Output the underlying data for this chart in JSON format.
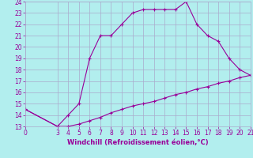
{
  "xlabel": "Windchill (Refroidissement éolien,°C)",
  "bg_color": "#b2eeee",
  "grid_color": "#aaaacc",
  "line_color": "#990099",
  "line1_x": [
    0,
    3,
    4,
    5,
    6,
    7,
    8,
    9,
    10,
    11,
    12,
    13,
    14,
    15,
    16,
    17,
    18,
    19,
    20,
    21
  ],
  "line1_y": [
    14.5,
    13.0,
    14.0,
    15.0,
    19.0,
    21.0,
    21.0,
    22.0,
    23.0,
    23.3,
    23.3,
    23.3,
    23.3,
    24.0,
    22.0,
    21.0,
    20.5,
    19.0,
    18.0,
    17.5
  ],
  "line2_x": [
    0,
    3,
    4,
    5,
    6,
    7,
    8,
    9,
    10,
    11,
    12,
    13,
    14,
    15,
    16,
    17,
    18,
    19,
    20,
    21
  ],
  "line2_y": [
    14.5,
    13.0,
    13.0,
    13.2,
    13.5,
    13.8,
    14.2,
    14.5,
    14.8,
    15.0,
    15.2,
    15.5,
    15.8,
    16.0,
    16.3,
    16.5,
    16.8,
    17.0,
    17.3,
    17.5
  ],
  "xlim": [
    0,
    21
  ],
  "ylim": [
    13,
    24
  ],
  "xticks": [
    0,
    3,
    4,
    5,
    6,
    7,
    8,
    9,
    10,
    11,
    12,
    13,
    14,
    15,
    16,
    17,
    18,
    19,
    20,
    21
  ],
  "yticks": [
    13,
    14,
    15,
    16,
    17,
    18,
    19,
    20,
    21,
    22,
    23,
    24
  ],
  "tick_fontsize": 5.5,
  "xlabel_fontsize": 6.0
}
